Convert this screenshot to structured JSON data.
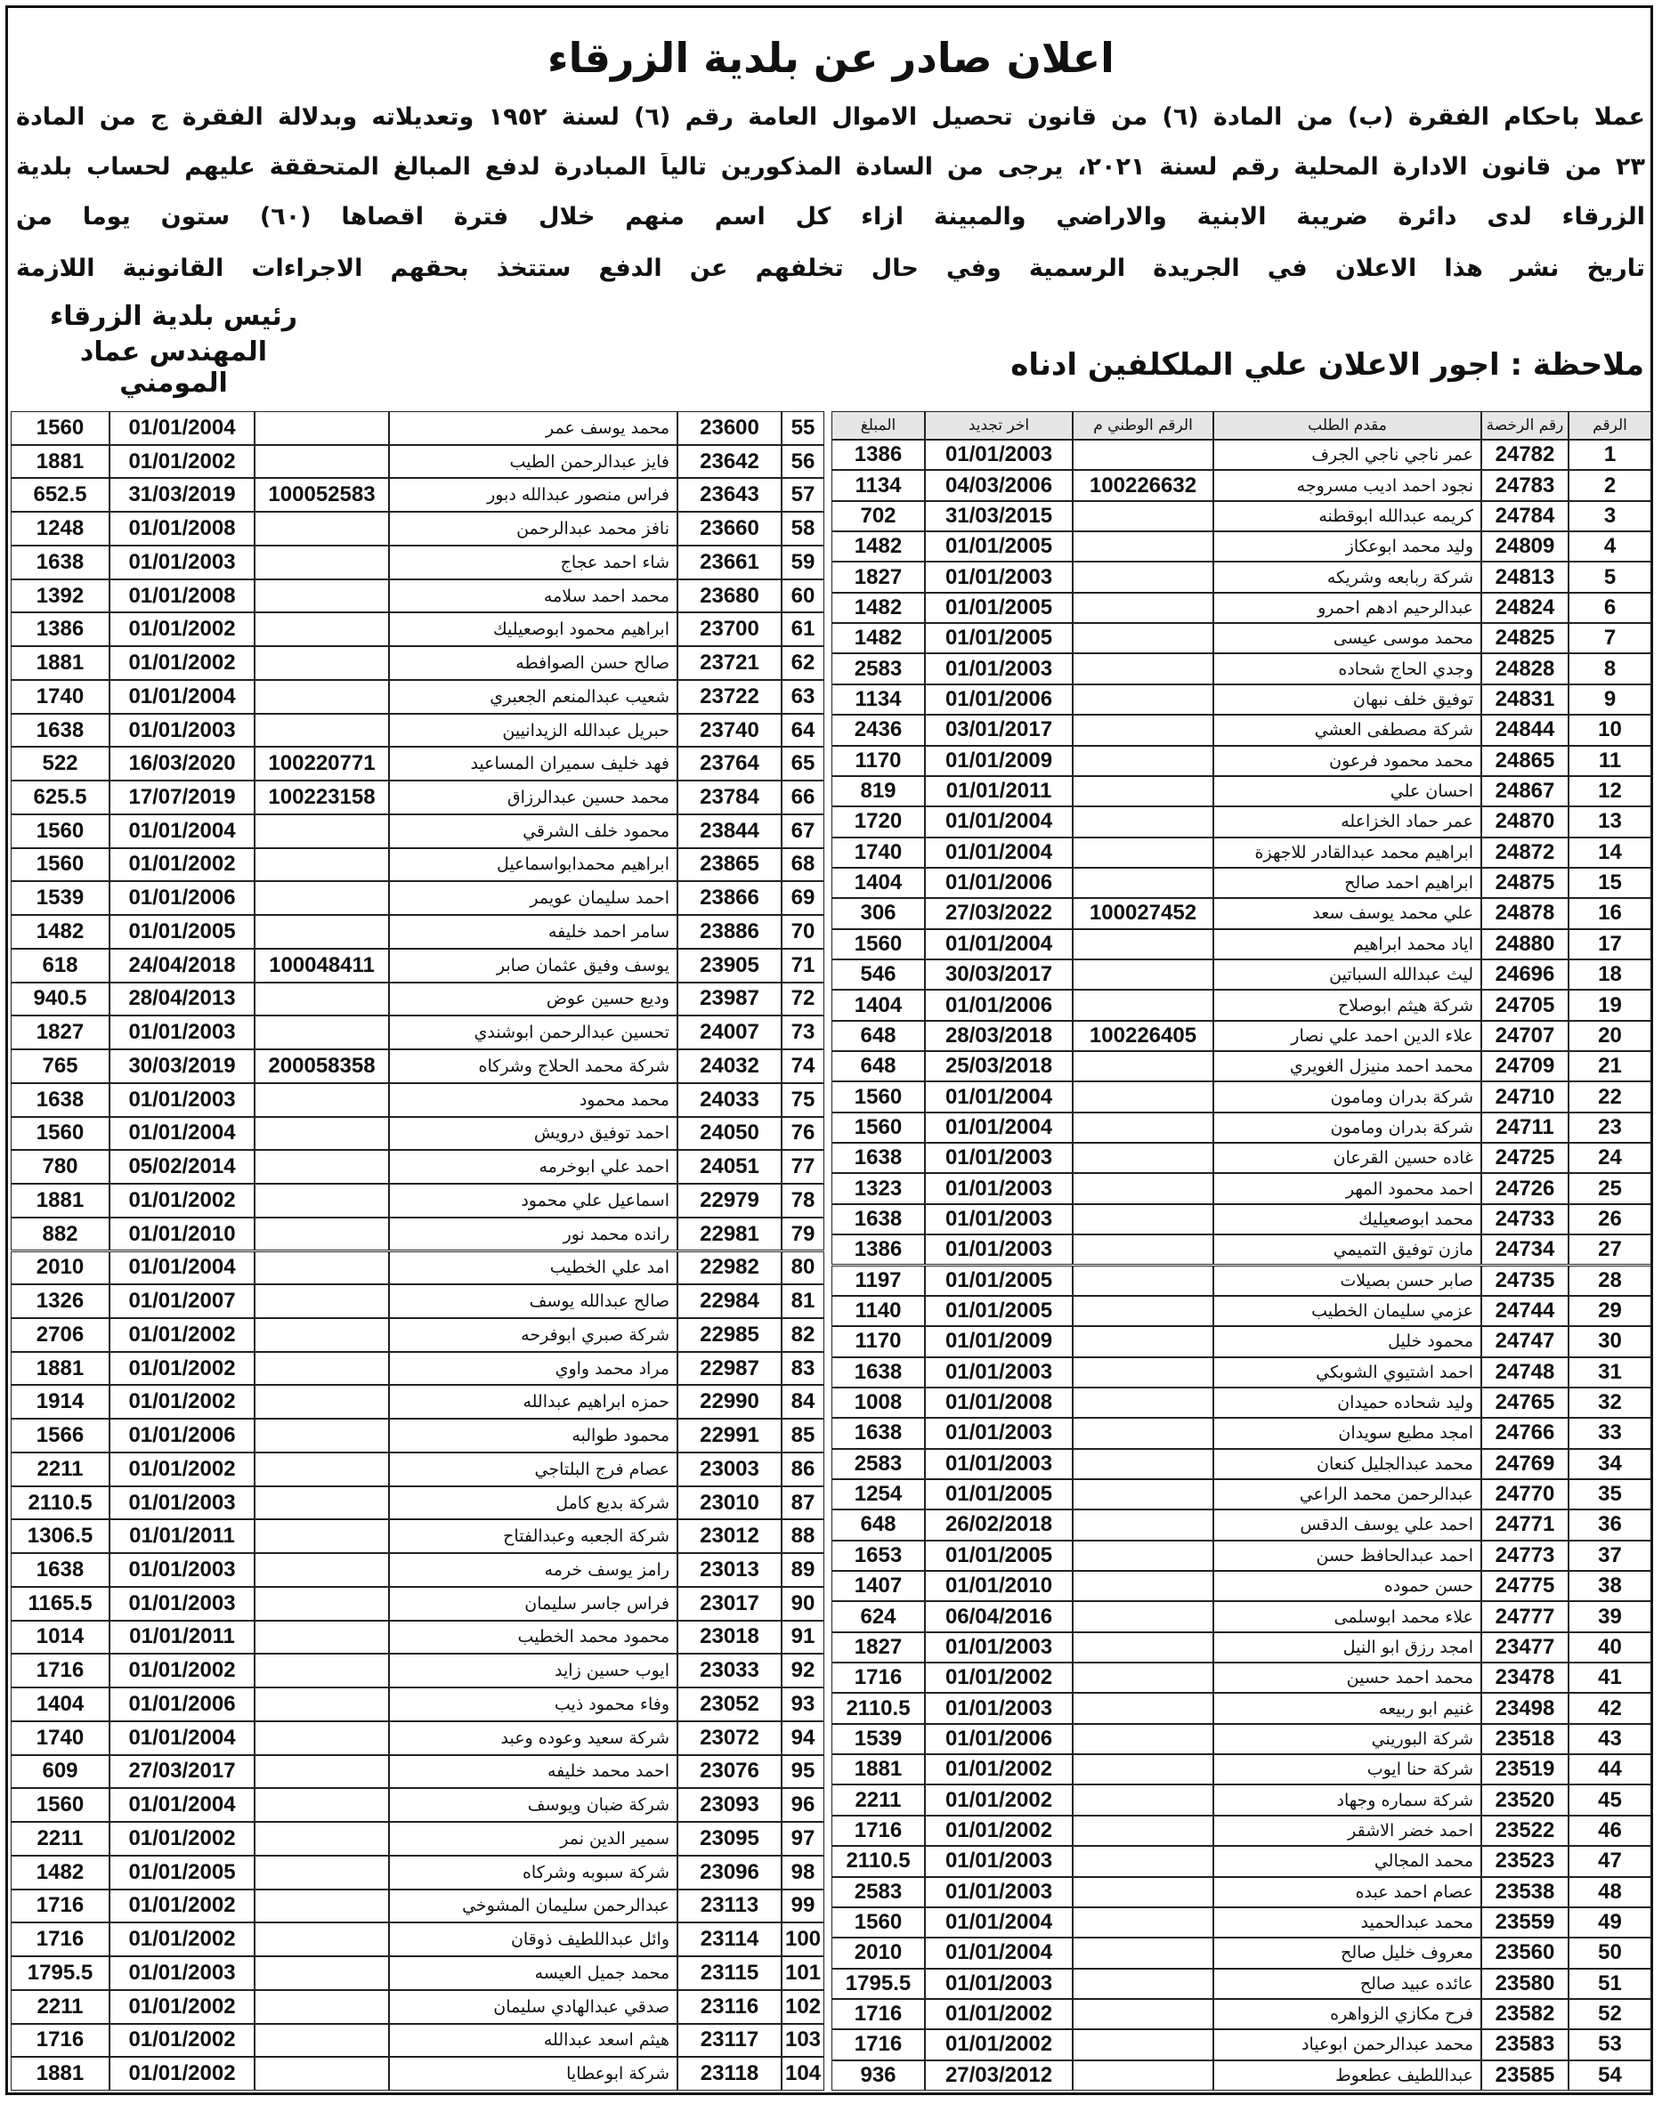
{
  "header": {
    "title": "اعلان صادر عن بلدية الزرقاء",
    "lines": [
      "عملا باحكام الفقرة (ب) من المادة (٦) من قانون تحصيل الاموال العامة رقم (٦) لسنة ١٩٥٢ وتعديلاته وبدلالة الفقرة ج من المادة",
      "٢٣ من قانون الادارة المحلية رقم لسنة ٢٠٢١، يرجى من السادة المذكورين تالياً المبادرة لدفع المبالغ المتحققة عليهم لحساب بلدية",
      "الزرقاء لدى دائرة ضريبة الابنية والاراضي والمبينة ازاء كل اسم منهم خلال فترة اقصاها (٦٠) ستون يوما من",
      "تاريخ نشر هذا الاعلان في الجريدة الرسمية وفي حال تخلفهم عن الدفع ستتخذ بحقهم الاجراءات القانونية اللازمة"
    ]
  },
  "signature": [
    "رئيس بلدية الزرقاء",
    "المهندس عماد المومني"
  ],
  "note": "ملاحظة : اجور الاعلان علي الملكلفين ادناه",
  "table": {
    "columns": [
      "الرقم",
      "رقم الرخصة",
      "مقدم الطلب",
      "الرقم الوطني م",
      "اخر تجديد",
      "المبلغ"
    ],
    "right_rows": [
      [
        1,
        24782,
        "عمر ناجي ناجي الجرف",
        null,
        "01/01/2003",
        1386
      ],
      [
        2,
        24783,
        "نجود احمد اديب مسروجه",
        100226632,
        "04/03/2006",
        1134
      ],
      [
        3,
        24784,
        "كريمه عبدالله ابوقطنه",
        null,
        "31/03/2015",
        702
      ],
      [
        4,
        24809,
        "وليد محمد ابوعكاز",
        null,
        "01/01/2005",
        1482
      ],
      [
        5,
        24813,
        "شركة ربابعه وشريكه",
        null,
        "01/01/2003",
        1827
      ],
      [
        6,
        24824,
        "عبدالرحيم ادهم احمرو",
        null,
        "01/01/2005",
        1482
      ],
      [
        7,
        24825,
        "محمد موسى عيسى",
        null,
        "01/01/2005",
        1482
      ],
      [
        8,
        24828,
        "وجدي الحاج شحاده",
        null,
        "01/01/2003",
        2583
      ],
      [
        9,
        24831,
        "توفيق خلف نبهان",
        null,
        "01/01/2006",
        1134
      ],
      [
        10,
        24844,
        "شركة مصطفى العشي",
        null,
        "03/01/2017",
        2436
      ],
      [
        11,
        24865,
        "محمد محمود فرعون",
        null,
        "01/01/2009",
        1170
      ],
      [
        12,
        24867,
        "احسان علي",
        null,
        "01/01/2011",
        819
      ],
      [
        13,
        24870,
        "عمر حماد الخزاعله",
        null,
        "01/01/2004",
        1720
      ],
      [
        14,
        24872,
        "ابراهيم محمد عبدالقادر للاجهزة",
        null,
        "01/01/2004",
        1740
      ],
      [
        15,
        24875,
        "ابراهيم احمد صالح",
        null,
        "01/01/2006",
        1404
      ],
      [
        16,
        24878,
        "علي محمد يوسف سعد",
        100027452,
        "27/03/2022",
        306
      ],
      [
        17,
        24880,
        "اياد محمد ابراهيم",
        null,
        "01/01/2004",
        1560
      ],
      [
        18,
        24696,
        "ليث عبدالله السباتين",
        null,
        "30/03/2017",
        546
      ],
      [
        19,
        24705,
        "شركة هيثم ابوصلاح",
        null,
        "01/01/2006",
        1404
      ],
      [
        20,
        24707,
        "علاء الدين احمد علي نصار",
        100226405,
        "28/03/2018",
        648
      ],
      [
        21,
        24709,
        "محمد احمد منيزل الغويري",
        null,
        "25/03/2018",
        648
      ],
      [
        22,
        24710,
        "شركة بدران ومامون",
        null,
        "01/01/2004",
        1560
      ],
      [
        23,
        24711,
        "شركة بدران ومامون",
        null,
        "01/01/2004",
        1560
      ],
      [
        24,
        24725,
        "غاده حسين القرعان",
        null,
        "01/01/2003",
        1638
      ],
      [
        25,
        24726,
        "احمد محمود المهر",
        null,
        "01/01/2003",
        1323
      ],
      [
        26,
        24733,
        "محمد ابوصعيليك",
        null,
        "01/01/2003",
        1638
      ],
      [
        27,
        24734,
        "مازن توفيق التميمي",
        null,
        "01/01/2003",
        1386
      ],
      [
        28,
        24735,
        "صابر حسن بصيلات",
        null,
        "01/01/2005",
        1197
      ],
      [
        29,
        24744,
        "عزمي سليمان الخطيب",
        null,
        "01/01/2005",
        1140
      ],
      [
        30,
        24747,
        "محمود خليل",
        null,
        "01/01/2009",
        1170
      ],
      [
        31,
        24748,
        "احمد اشتيوي الشوبكي",
        null,
        "01/01/2003",
        1638
      ],
      [
        32,
        24765,
        "وليد شحاده حميدان",
        null,
        "01/01/2008",
        1008
      ],
      [
        33,
        24766,
        "امجد مطيع سويدان",
        null,
        "01/01/2003",
        1638
      ],
      [
        34,
        24769,
        "محمد عبدالجليل كنعان",
        null,
        "01/01/2003",
        2583
      ],
      [
        35,
        24770,
        "عبدالرحمن محمد الراعي",
        null,
        "01/01/2005",
        1254
      ],
      [
        36,
        24771,
        "احمد علي يوسف الدقس",
        null,
        "26/02/2018",
        648
      ],
      [
        37,
        24773,
        "احمد عبدالحافظ حسن",
        null,
        "01/01/2005",
        1653
      ],
      [
        38,
        24775,
        "حسن حموده",
        null,
        "01/01/2010",
        1407
      ],
      [
        39,
        24777,
        "علاء محمد ابوسلمى",
        null,
        "06/04/2016",
        624
      ],
      [
        40,
        23477,
        "امجد رزق ابو النيل",
        null,
        "01/01/2003",
        1827
      ],
      [
        41,
        23478,
        "محمد احمد حسين",
        null,
        "01/01/2002",
        1716
      ],
      [
        42,
        23498,
        "غنيم ابو ربيعه",
        null,
        "01/01/2003",
        2110.5
      ],
      [
        43,
        23518,
        "شركة البوريني",
        null,
        "01/01/2006",
        1539
      ],
      [
        44,
        23519,
        "شركة حنا ايوب",
        null,
        "01/01/2002",
        1881
      ],
      [
        45,
        23520,
        "شركة سماره وجهاد",
        null,
        "01/01/2002",
        2211
      ],
      [
        46,
        23522,
        "احمد خضر الاشقر",
        null,
        "01/01/2002",
        1716
      ],
      [
        47,
        23523,
        "محمد المجالي",
        null,
        "01/01/2003",
        2110.5
      ],
      [
        48,
        23538,
        "عصام احمد عبده",
        null,
        "01/01/2003",
        2583
      ],
      [
        49,
        23559,
        "محمد عبدالحميد",
        null,
        "01/01/2004",
        1560
      ],
      [
        50,
        23560,
        "معروف خليل صالح",
        null,
        "01/01/2004",
        2010
      ],
      [
        51,
        23580,
        "عائده عبيد صالح",
        null,
        "01/01/2003",
        1795.5
      ],
      [
        52,
        23582,
        "فرح مكازي الزواهره",
        null,
        "01/01/2002",
        1716
      ],
      [
        53,
        23583,
        "محمد عبدالرحمن ابوعياد",
        null,
        "01/01/2002",
        1716
      ],
      [
        54,
        23585,
        "عبداللطيف عطعوط",
        null,
        "27/03/2012",
        936
      ]
    ],
    "left_rows": [
      [
        55,
        23600,
        "محمد يوسف عمر",
        null,
        "01/01/2004",
        1560
      ],
      [
        56,
        23642,
        "فايز عبدالرحمن الطيب",
        null,
        "01/01/2002",
        1881
      ],
      [
        57,
        23643,
        "فراس منصور عبدالله دبور",
        100052583,
        "31/03/2019",
        652.5
      ],
      [
        58,
        23660,
        "نافز محمد عبدالرحمن",
        null,
        "01/01/2008",
        1248
      ],
      [
        59,
        23661,
        "شاء احمد عجاج",
        null,
        "01/01/2003",
        1638
      ],
      [
        60,
        23680,
        "محمد احمد سلامه",
        null,
        "01/01/2008",
        1392
      ],
      [
        61,
        23700,
        "ابراهيم محمود ابوصعيليك",
        null,
        "01/01/2002",
        1386
      ],
      [
        62,
        23721,
        "صالح حسن الصوافطه",
        null,
        "01/01/2002",
        1881
      ],
      [
        63,
        23722,
        "شعيب عبدالمنعم الجعبري",
        null,
        "01/01/2004",
        1740
      ],
      [
        64,
        23740,
        "حبريل عبدالله الزيدانيين",
        null,
        "01/01/2003",
        1638
      ],
      [
        65,
        23764,
        "فهد خليف سميران المساعيد",
        100220771,
        "16/03/2020",
        522
      ],
      [
        66,
        23784,
        "محمد حسين عبدالرزاق",
        100223158,
        "17/07/2019",
        625.5
      ],
      [
        67,
        23844,
        "محمود خلف الشرقي",
        null,
        "01/01/2004",
        1560
      ],
      [
        68,
        23865,
        "ابراهيم محمدابواسماعيل",
        null,
        "01/01/2002",
        1560
      ],
      [
        69,
        23866,
        "احمد سليمان عويمر",
        null,
        "01/01/2006",
        1539
      ],
      [
        70,
        23886,
        "سامر احمد خليفه",
        null,
        "01/01/2005",
        1482
      ],
      [
        71,
        23905,
        "يوسف وفيق عثمان صابر",
        100048411,
        "24/04/2018",
        618
      ],
      [
        72,
        23987,
        "وديع حسين عوض",
        null,
        "28/04/2013",
        940.5
      ],
      [
        73,
        24007,
        "تحسين عبدالرحمن ابوشندي",
        null,
        "01/01/2003",
        1827
      ],
      [
        74,
        24032,
        "شركة محمد الحلاج وشركاه",
        200058358,
        "30/03/2019",
        765
      ],
      [
        75,
        24033,
        "محمد محمود",
        null,
        "01/01/2003",
        1638
      ],
      [
        76,
        24050,
        "احمد توفيق درويش",
        null,
        "01/01/2004",
        1560
      ],
      [
        77,
        24051,
        "احمد علي ابوخرمه",
        null,
        "05/02/2014",
        780
      ],
      [
        78,
        22979,
        "اسماعيل علي محمود",
        null,
        "01/01/2002",
        1881
      ],
      [
        79,
        22981,
        "رانده محمد نور",
        null,
        "01/01/2010",
        882
      ],
      [
        80,
        22982,
        "امد علي الخطيب",
        null,
        "01/01/2004",
        2010
      ],
      [
        81,
        22984,
        "صالح عبدالله يوسف",
        null,
        "01/01/2007",
        1326
      ],
      [
        82,
        22985,
        "شركة صبري ابوفرحه",
        null,
        "01/01/2002",
        2706
      ],
      [
        83,
        22987,
        "مراد محمد واوي",
        null,
        "01/01/2002",
        1881
      ],
      [
        84,
        22990,
        "حمزه ابراهيم عبدالله",
        null,
        "01/01/2002",
        1914
      ],
      [
        85,
        22991,
        "محمود طوالبه",
        null,
        "01/01/2006",
        1566
      ],
      [
        86,
        23003,
        "عصام فرج البلتاجي",
        null,
        "01/01/2002",
        2211
      ],
      [
        87,
        23010,
        "شركة بديع كامل",
        null,
        "01/01/2003",
        2110.5
      ],
      [
        88,
        23012,
        "شركة الجعبه وعبدالفتاح",
        null,
        "01/01/2011",
        1306.5
      ],
      [
        89,
        23013,
        "رامز يوسف خرمه",
        null,
        "01/01/2003",
        1638
      ],
      [
        90,
        23017,
        "فراس جاسر سليمان",
        null,
        "01/01/2003",
        1165.5
      ],
      [
        91,
        23018,
        "محمود محمد الخطيب",
        null,
        "01/01/2011",
        1014
      ],
      [
        92,
        23033,
        "ايوب حسين زايد",
        null,
        "01/01/2002",
        1716
      ],
      [
        93,
        23052,
        "وفاء محمود ذيب",
        null,
        "01/01/2006",
        1404
      ],
      [
        94,
        23072,
        "شركة سعيد وعوده وعبد",
        null,
        "01/01/2004",
        1740
      ],
      [
        95,
        23076,
        "احمد محمد خليفه",
        null,
        "27/03/2017",
        609
      ],
      [
        96,
        23093,
        "شركة ضبان ويوسف",
        null,
        "01/01/2004",
        1560
      ],
      [
        97,
        23095,
        "سمير الدين نمر",
        null,
        "01/01/2002",
        2211
      ],
      [
        98,
        23096,
        "شركة سبوبه وشركاه",
        null,
        "01/01/2005",
        1482
      ],
      [
        99,
        23113,
        "عبدالرحمن سليمان المشوخي",
        null,
        "01/01/2002",
        1716
      ],
      [
        100,
        23114,
        "وائل عبداللطيف ذوقان",
        null,
        "01/01/2002",
        1716
      ],
      [
        101,
        23115,
        "محمد جميل العيسه",
        null,
        "01/01/2003",
        1795.5
      ],
      [
        102,
        23116,
        "صدقي عبدالهادي سليمان",
        null,
        "01/01/2002",
        2211
      ],
      [
        103,
        23117,
        "هيثم اسعد عبدالله",
        null,
        "01/01/2002",
        1716
      ],
      [
        104,
        23118,
        "شركة ابوعطايا",
        null,
        "01/01/2002",
        1881
      ]
    ]
  }
}
